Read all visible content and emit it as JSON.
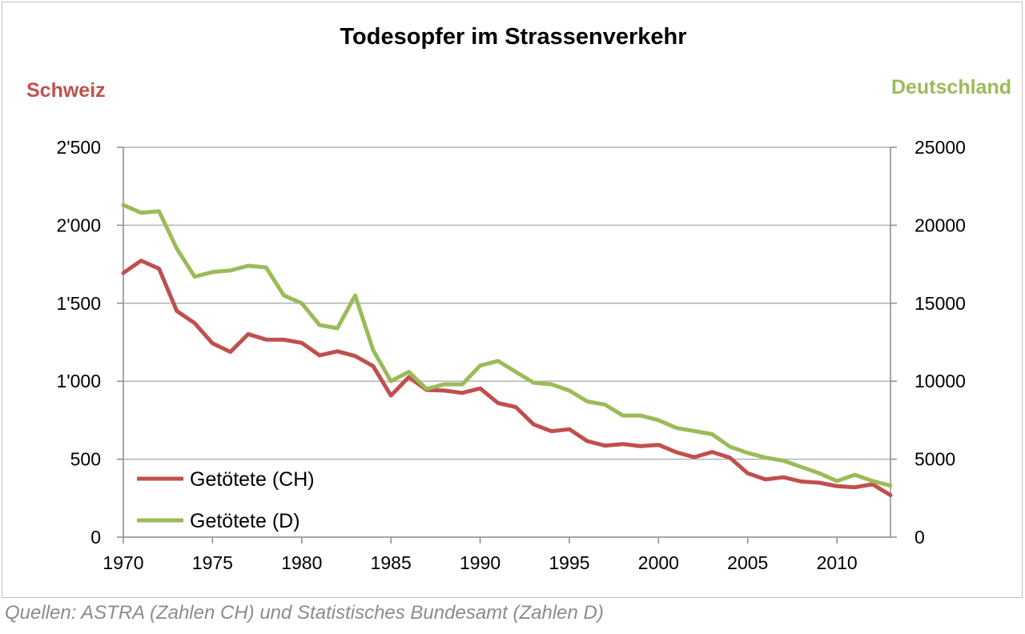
{
  "chart_data": {
    "type": "line",
    "title": "Todesopfer im Strassenverkehr",
    "left_axis_label": "Schweiz",
    "right_axis_label": "Deutschland",
    "xlim": [
      1970,
      2013
    ],
    "ylim_left": [
      0,
      2500
    ],
    "ylim_right": [
      0,
      25000
    ],
    "x_ticks": [
      "1970",
      "1975",
      "1980",
      "1985",
      "1990",
      "1995",
      "2000",
      "2005",
      "2010"
    ],
    "y_ticks_left": [
      "0",
      "500",
      "1'000",
      "1'500",
      "2'000",
      "2'500"
    ],
    "y_ticks_right": [
      "0",
      "5000",
      "10000",
      "15000",
      "20000",
      "25000"
    ],
    "grid": true,
    "legend_position": "bottom-left",
    "x": [
      1970,
      1971,
      1972,
      1973,
      1974,
      1975,
      1976,
      1977,
      1978,
      1979,
      1980,
      1981,
      1982,
      1983,
      1984,
      1985,
      1986,
      1987,
      1988,
      1989,
      1990,
      1991,
      1992,
      1993,
      1994,
      1995,
      1996,
      1997,
      1998,
      1999,
      2000,
      2001,
      2002,
      2003,
      2004,
      2005,
      2006,
      2007,
      2008,
      2009,
      2010,
      2011,
      2012,
      2013
    ],
    "series": [
      {
        "name": "Getötete (CH)",
        "axis": "left",
        "color": "#c0504d",
        "values": [
          1694,
          1773,
          1722,
          1450,
          1372,
          1243,
          1188,
          1302,
          1267,
          1266,
          1246,
          1166,
          1192,
          1161,
          1097,
          908,
          1026,
          944,
          940,
          925,
          954,
          860,
          834,
          723,
          679,
          692,
          616,
          587,
          597,
          583,
          592,
          544,
          513,
          546,
          510,
          409,
          370,
          384,
          357,
          349,
          327,
          320,
          339,
          269
        ]
      },
      {
        "name": "Getötete (D)",
        "axis": "right",
        "color": "#9bbb59",
        "values": [
          21300,
          20800,
          20900,
          18500,
          16700,
          17000,
          17100,
          17400,
          17300,
          15500,
          15000,
          13600,
          13400,
          15500,
          12000,
          10000,
          10600,
          9500,
          9800,
          9800,
          11000,
          11300,
          10600,
          9900,
          9800,
          9400,
          8700,
          8500,
          7800,
          7800,
          7500,
          7000,
          6800,
          6600,
          5800,
          5400,
          5100,
          4900,
          4500,
          4100,
          3600,
          4000,
          3600,
          3300
        ]
      }
    ],
    "source_text": "Quellen: ASTRA (Zahlen CH) und Statistisches Bundesamt (Zahlen D)"
  }
}
